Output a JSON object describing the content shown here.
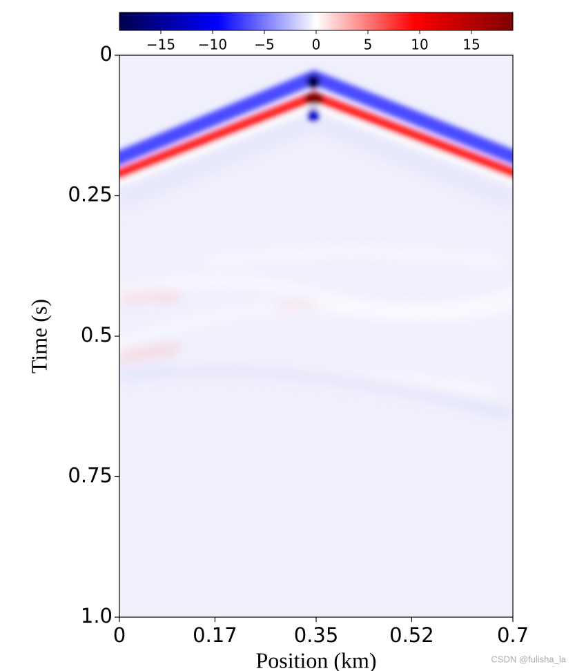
{
  "chart_data": {
    "type": "heatmap",
    "xlabel": "Position (km)",
    "ylabel": "Time (s)",
    "xlim": [
      0,
      0.7
    ],
    "xticks": [
      0,
      0.17,
      0.35,
      0.52,
      0.7
    ],
    "ylim": [
      1,
      0
    ],
    "yticks": [
      0,
      0.25,
      0.5,
      0.75,
      {
        "value": 1,
        "label": "1.0"
      }
    ],
    "colorbar": {
      "clim": [
        -19,
        19
      ],
      "ticks": [
        {
          "value": -15,
          "label": "−15"
        },
        {
          "value": -10,
          "label": "−10"
        },
        {
          "value": -5,
          "label": "−5"
        },
        0,
        5,
        10,
        15
      ],
      "colormap": [
        "#00004c",
        "#0000ff",
        "#ffffff",
        "#ff0000",
        "#7f0000"
      ]
    },
    "watermark": "CSDN @fulisha_la"
  }
}
